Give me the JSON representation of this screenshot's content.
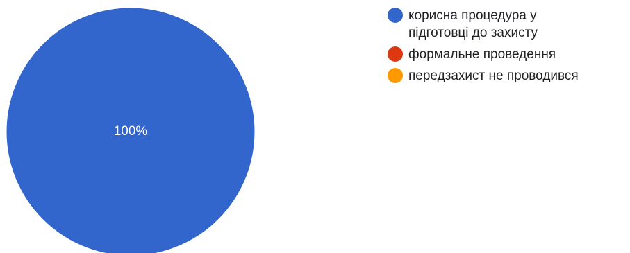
{
  "chart_data": {
    "type": "pie",
    "categories": [
      "корисна процедура у\nпідготовці до захисту",
      "формальне проведення",
      "передзахист не проводився"
    ],
    "values": [
      100,
      0,
      0
    ],
    "slice_labels": [
      "100%",
      "",
      ""
    ],
    "colors": [
      "#3366cc",
      "#dc3912",
      "#ff9900"
    ],
    "legend_position": "right"
  },
  "legend": {
    "items": [
      {
        "line1": "корисна процедура у",
        "line2": "підготовці до захисту",
        "color": "#3366cc"
      },
      {
        "line1": "формальне проведення",
        "line2": "",
        "color": "#dc3912"
      },
      {
        "line1": "передзахист не проводився",
        "line2": "",
        "color": "#ff9900"
      }
    ]
  }
}
